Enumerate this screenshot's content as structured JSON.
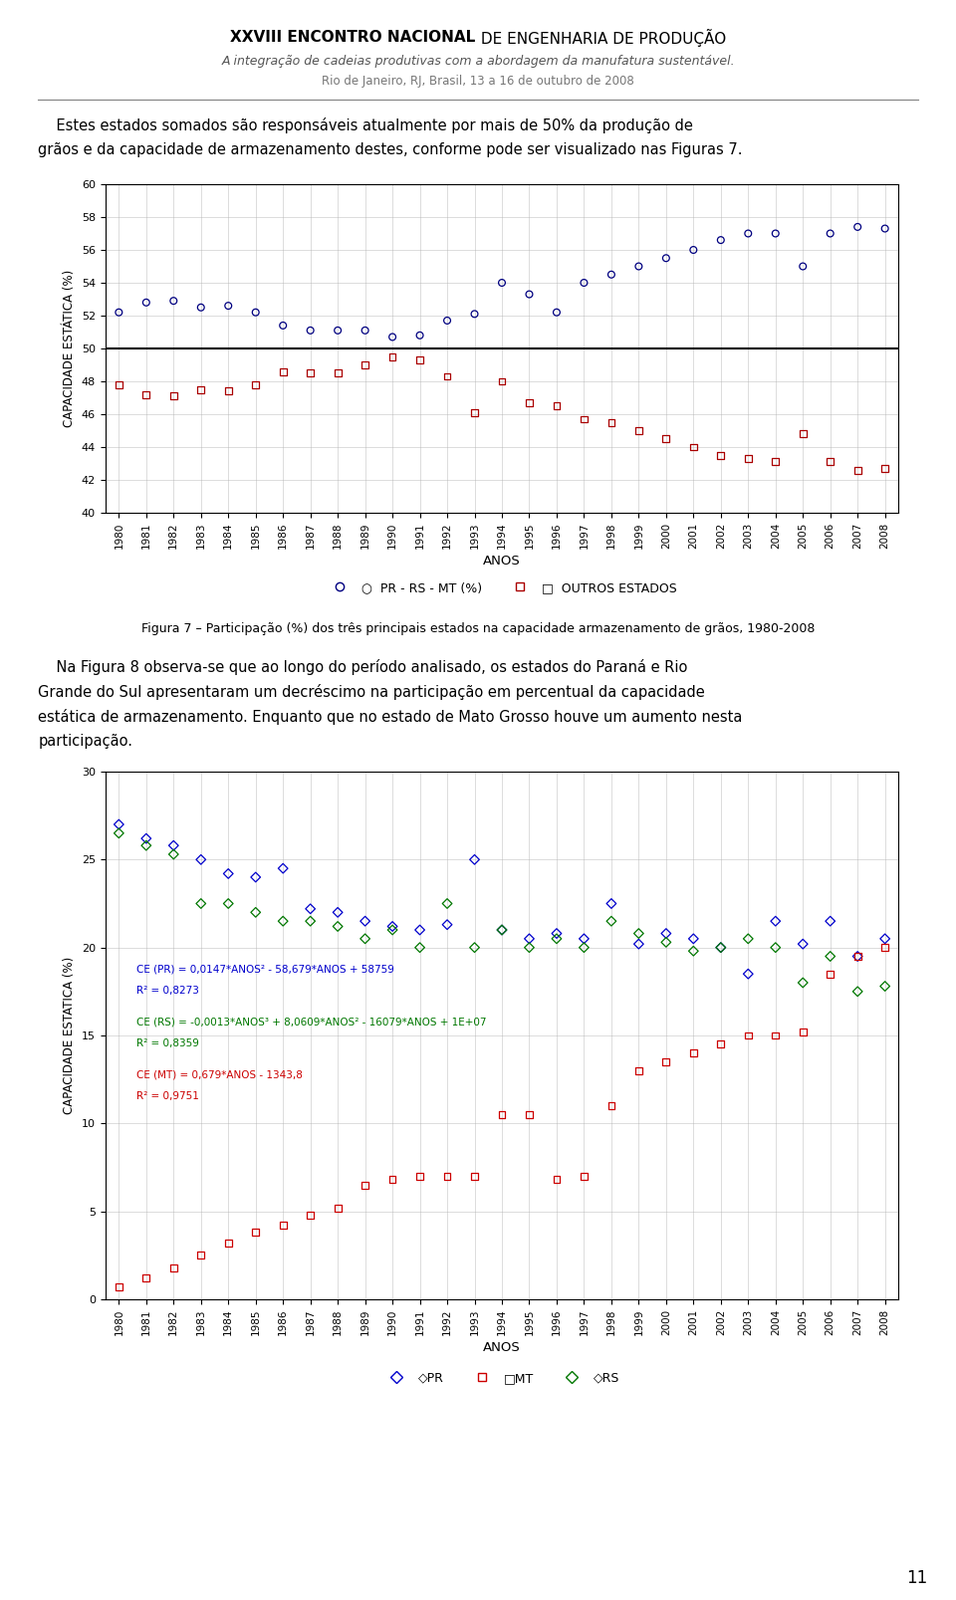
{
  "chart_data": [
    {
      "type": "scatter",
      "title": "Figura 7 – Participação (%) dos três principais estados na capacidade armazenamento de grãos, 1980-2008",
      "x_label": "ANOS",
      "y_label": "CAPACIDADE ESTÁTICA (%)",
      "x": [
        1980,
        1981,
        1982,
        1983,
        1984,
        1985,
        1986,
        1987,
        1988,
        1989,
        1990,
        1991,
        1992,
        1993,
        1994,
        1995,
        1996,
        1997,
        1998,
        1999,
        2000,
        2001,
        2002,
        2003,
        2004,
        2005,
        2006,
        2007,
        2008
      ],
      "series": [
        {
          "name": "○  PR - RS - MT (%)",
          "color": "#000080",
          "marker": "circle",
          "values": [
            52.2,
            52.8,
            52.9,
            52.5,
            52.6,
            52.2,
            51.4,
            51.1,
            51.1,
            51.1,
            50.7,
            50.8,
            51.7,
            52.1,
            54.0,
            53.3,
            52.2,
            54.0,
            54.5,
            55.0,
            55.5,
            56.0,
            56.6,
            57.0,
            57.0,
            55.0,
            57.0,
            57.4,
            57.3
          ]
        },
        {
          "name": "□  OUTROS ESTADOS",
          "color": "#aa0000",
          "marker": "square",
          "values": [
            47.8,
            47.2,
            47.1,
            47.5,
            47.4,
            47.8,
            48.6,
            48.5,
            48.5,
            49.0,
            49.5,
            49.3,
            48.3,
            46.1,
            48.0,
            46.7,
            46.5,
            45.7,
            45.5,
            45.0,
            44.5,
            44.0,
            43.5,
            43.3,
            43.1,
            44.8,
            43.1,
            42.6,
            42.7
          ]
        }
      ],
      "reference_line": 50,
      "xlim": [
        1979.5,
        2008.5
      ],
      "xticks": [
        1980,
        1981,
        1982,
        1983,
        1984,
        1985,
        1986,
        1987,
        1988,
        1989,
        1990,
        1991,
        1992,
        1993,
        1994,
        1995,
        1996,
        1997,
        1998,
        1999,
        2000,
        2001,
        2002,
        2003,
        2004,
        2005,
        2006,
        2007,
        2008
      ],
      "ylim": [
        40,
        60
      ],
      "yticks": [
        40,
        42,
        44,
        46,
        48,
        50,
        52,
        54,
        56,
        58,
        60
      ],
      "grid": true,
      "legend": "lower center",
      "annotations": [
        {
          "text": "XXVIII ENCONTRO NACIONAL"
        },
        {
          "text": " DE ENGENHARIA DE PRODUÇÃO"
        },
        {
          "text": "A integração de cadeias produtivas com a abordagem da manufatura sustentável."
        },
        {
          "text": "Rio de Janeiro, RJ, Brasil, 13 a 16 de outubro de 2008"
        },
        {
          "text": "    Estes estados somados são responsáveis atualmente por mais de 50% da produção de"
        },
        {
          "text": "grãos e da capacidade de armazenamento destes, conforme pode ser visualizado nas Figuras 7."
        }
      ]
    },
    {
      "type": "scatter",
      "x_label": "ANOS",
      "y_label": "CAPACIDADE ESTATICA (%)",
      "x": [
        1980,
        1981,
        1982,
        1983,
        1984,
        1985,
        1986,
        1987,
        1988,
        1989,
        1990,
        1991,
        1992,
        1993,
        1994,
        1995,
        1996,
        1997,
        1998,
        1999,
        2000,
        2001,
        2002,
        2003,
        2004,
        2005,
        2006,
        2007,
        2008
      ],
      "series": [
        {
          "name": "◇PR",
          "color": "#0000cc",
          "marker": "diamond",
          "values": [
            27.0,
            26.2,
            25.8,
            25.0,
            24.2,
            24.0,
            24.5,
            22.2,
            22.0,
            21.5,
            21.2,
            21.0,
            21.3,
            25.0,
            21.0,
            20.5,
            20.8,
            20.5,
            22.5,
            20.2,
            20.8,
            20.5,
            20.0,
            18.5,
            21.5,
            20.2,
            21.5,
            19.5,
            20.5
          ]
        },
        {
          "name": "□MT",
          "color": "#cc0000",
          "marker": "square",
          "values": [
            0.7,
            1.2,
            1.8,
            2.5,
            3.2,
            3.8,
            4.2,
            4.8,
            5.2,
            6.5,
            6.8,
            7.0,
            7.0,
            7.0,
            10.5,
            10.5,
            6.8,
            7.0,
            11.0,
            13.0,
            13.5,
            14.0,
            14.5,
            15.0,
            15.0,
            15.2,
            18.5,
            19.5,
            20.0
          ]
        },
        {
          "name": "◇RS",
          "color": "#007700",
          "marker": "diamond",
          "values": [
            26.5,
            25.8,
            25.3,
            22.5,
            22.5,
            22.0,
            21.5,
            21.5,
            21.2,
            20.5,
            21.0,
            20.0,
            22.5,
            20.0,
            21.0,
            20.0,
            20.5,
            20.0,
            21.5,
            20.8,
            20.3,
            19.8,
            20.0,
            20.5,
            20.0,
            18.0,
            19.5,
            17.5,
            17.8
          ]
        }
      ],
      "xlim": [
        1979.5,
        2008.5
      ],
      "xticks": [
        1980,
        1981,
        1982,
        1983,
        1984,
        1985,
        1986,
        1987,
        1988,
        1989,
        1990,
        1991,
        1992,
        1993,
        1994,
        1995,
        1996,
        1997,
        1998,
        1999,
        2000,
        2001,
        2002,
        2003,
        2004,
        2005,
        2006,
        2007,
        2008
      ],
      "ylim": [
        0,
        30
      ],
      "yticks": [
        0,
        5,
        10,
        15,
        20,
        25,
        30
      ],
      "grid": true,
      "legend": "lower center",
      "annotations": [
        {
          "text": "    Na Figura 8 observa-se que ao longo do período analisado, os estados do Paraná e Rio"
        },
        {
          "text": "Grande do Sul apresentaram um decréscimo na participação em percentual da capacidade"
        },
        {
          "text": "estática de armazenamento. Enquanto que no estado de Mato Grosso houve um aumento nesta"
        },
        {
          "text": "participação."
        },
        {
          "text": "CE (PR) = 0,0147*ANOS² - 58,679*ANOS + 58759",
          "color": "#0000cc"
        },
        {
          "text": "R² = 0,8273",
          "color": "#0000cc"
        },
        {
          "text": "CE (RS) = -0,0013*ANOS³ + 8,0609*ANOS² - 16079*ANOS + 1E+07",
          "color": "#007700"
        },
        {
          "text": "R² = 0,8359",
          "color": "#007700"
        },
        {
          "text": "CE (MT) = 0,679*ANOS - 1343,8",
          "color": "#cc0000"
        },
        {
          "text": "R² = 0,9751",
          "color": "#cc0000"
        },
        {
          "text": "11"
        }
      ]
    }
  ]
}
